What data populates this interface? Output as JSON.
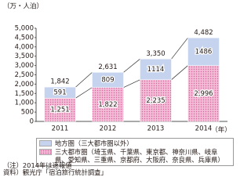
{
  "chart_data": {
    "type": "stacked-bar",
    "y_unit_label": "（万・人泊）",
    "x_unit_label": "（年）",
    "categories": [
      "2011",
      "2012",
      "2013",
      "2014"
    ],
    "series": [
      {
        "name": "三大都市圏（埼玉県、千葉県、東京都、神奈川県、岐阜県、愛知県、三重県、京都府、大阪府、奈良県、兵庫県）",
        "color": "#f2bcd6",
        "values": [
          1251,
          1822,
          2235,
          2996
        ],
        "value_labels": [
          "1,251",
          "1,822",
          "2,235",
          "2,996"
        ]
      },
      {
        "name": "地方圏（三大都市圏以外）",
        "color": "#c5d3ee",
        "values": [
          591,
          809,
          1114,
          1486
        ]
      }
    ],
    "totals": {
      "values": [
        1842,
        2631,
        3350,
        4482
      ],
      "value_labels": [
        "1,842",
        "2,631",
        "3,350",
        "4,482"
      ]
    },
    "ylim": [
      0,
      5000
    ],
    "yticks": [
      0,
      500,
      {
        "value": 1000,
        "label": "1,000"
      },
      {
        "value": 1500,
        "label": "1,500"
      },
      {
        "value": 2000,
        "label": "2,000"
      },
      {
        "value": 2500,
        "label": "2,500"
      },
      {
        "value": 3000,
        "label": "3,000"
      },
      {
        "value": 3500,
        "label": "3,500"
      },
      {
        "value": 4000,
        "label": "4,000"
      },
      {
        "value": 4500,
        "label": "4,500"
      },
      {
        "value": 5000,
        "label": "5,000"
      }
    ],
    "grid": false
  },
  "notes": [
    "（注）2014年は速報値",
    "資料）観光庁「宿泊旅行統計調査」"
  ]
}
